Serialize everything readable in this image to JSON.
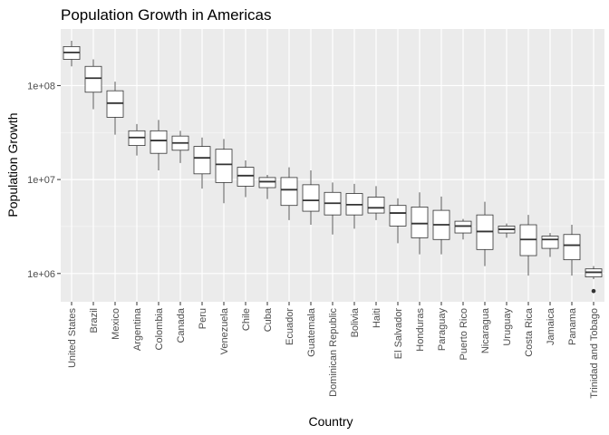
{
  "chart_data": {
    "type": "boxplot",
    "title": "Population Growth in Americas",
    "xlabel": "Country",
    "ylabel": "Population Growth",
    "y_scale": "log10",
    "ylim": [
      500000,
      400000000
    ],
    "y_ticks": [
      1000000,
      10000000,
      100000000
    ],
    "y_tick_labels": [
      "1e+06",
      "1e+07",
      "1e+08"
    ],
    "grid": true,
    "legend": "none",
    "categories": [
      "United States",
      "Brazil",
      "Mexico",
      "Argentina",
      "Colombia",
      "Canada",
      "Peru",
      "Venezuela",
      "Chile",
      "Cuba",
      "Ecuador",
      "Guatemala",
      "Dominican Republic",
      "Bolivia",
      "Haiti",
      "El Salvador",
      "Honduras",
      "Paraguay",
      "Puerto Rico",
      "Nicaragua",
      "Uruguay",
      "Costa Rica",
      "Jamaica",
      "Panama",
      "Trinidad and Tobago"
    ],
    "boxes": [
      {
        "min": 160000000,
        "q1": 190000000,
        "median": 225000000,
        "q3": 260000000,
        "max": 300000000,
        "outliers": []
      },
      {
        "min": 56000000,
        "q1": 85000000,
        "median": 120000000,
        "q3": 160000000,
        "max": 190000000,
        "outliers": []
      },
      {
        "min": 30000000,
        "q1": 46000000,
        "median": 65000000,
        "q3": 88000000,
        "max": 110000000,
        "outliers": []
      },
      {
        "min": 18000000,
        "q1": 23000000,
        "median": 28000000,
        "q3": 33000000,
        "max": 39000000,
        "outliers": []
      },
      {
        "min": 12500000,
        "q1": 19000000,
        "median": 26000000,
        "q3": 33000000,
        "max": 43000000,
        "outliers": []
      },
      {
        "min": 15000000,
        "q1": 20500000,
        "median": 24500000,
        "q3": 29000000,
        "max": 33000000,
        "outliers": []
      },
      {
        "min": 8000000,
        "q1": 11500000,
        "median": 17000000,
        "q3": 22500000,
        "max": 28000000,
        "outliers": []
      },
      {
        "min": 5600000,
        "q1": 9300000,
        "median": 14500000,
        "q3": 21000000,
        "max": 27000000,
        "outliers": []
      },
      {
        "min": 6500000,
        "q1": 8500000,
        "median": 11000000,
        "q3": 13500000,
        "max": 16000000,
        "outliers": []
      },
      {
        "min": 6200000,
        "q1": 8200000,
        "median": 9500000,
        "q3": 10500000,
        "max": 11200000,
        "outliers": []
      },
      {
        "min": 3700000,
        "q1": 5300000,
        "median": 7800000,
        "q3": 10500000,
        "max": 13500000,
        "outliers": []
      },
      {
        "min": 3300000,
        "q1": 4600000,
        "median": 6000000,
        "q3": 8800000,
        "max": 12500000,
        "outliers": []
      },
      {
        "min": 2600000,
        "q1": 4200000,
        "median": 5600000,
        "q3": 7300000,
        "max": 9300000,
        "outliers": []
      },
      {
        "min": 3000000,
        "q1": 4200000,
        "median": 5400000,
        "q3": 7100000,
        "max": 9000000,
        "outliers": []
      },
      {
        "min": 3700000,
        "q1": 4400000,
        "median": 5000000,
        "q3": 6500000,
        "max": 8500000,
        "outliers": []
      },
      {
        "min": 2100000,
        "q1": 3200000,
        "median": 4400000,
        "q3": 5300000,
        "max": 6300000,
        "outliers": []
      },
      {
        "min": 1600000,
        "q1": 2400000,
        "median": 3400000,
        "q3": 5100000,
        "max": 7300000,
        "outliers": []
      },
      {
        "min": 1600000,
        "q1": 2300000,
        "median": 3300000,
        "q3": 4700000,
        "max": 6600000,
        "outliers": []
      },
      {
        "min": 2300000,
        "q1": 2700000,
        "median": 3200000,
        "q3": 3600000,
        "max": 3800000,
        "outliers": []
      },
      {
        "min": 1200000,
        "q1": 1800000,
        "median": 2800000,
        "q3": 4200000,
        "max": 5800000,
        "outliers": []
      },
      {
        "min": 2400000,
        "q1": 2700000,
        "median": 2950000,
        "q3": 3200000,
        "max": 3400000,
        "outliers": []
      },
      {
        "min": 950000,
        "q1": 1550000,
        "median": 2300000,
        "q3": 3300000,
        "max": 4200000,
        "outliers": []
      },
      {
        "min": 1500000,
        "q1": 1850000,
        "median": 2300000,
        "q3": 2500000,
        "max": 2700000,
        "outliers": []
      },
      {
        "min": 950000,
        "q1": 1400000,
        "median": 2000000,
        "q3": 2600000,
        "max": 3300000,
        "outliers": []
      },
      {
        "min": 870000,
        "q1": 920000,
        "median": 1030000,
        "q3": 1120000,
        "max": 1200000,
        "outliers": [
          650000
        ]
      }
    ]
  }
}
